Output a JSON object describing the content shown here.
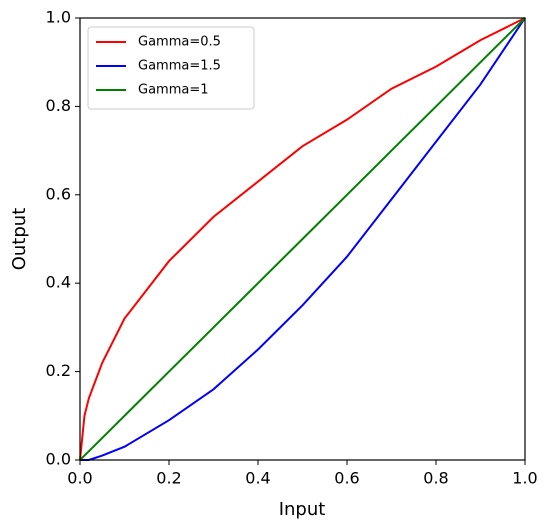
{
  "chart_data": {
    "type": "line",
    "xlabel": "Input",
    "ylabel": "Output",
    "x": [
      0,
      0.01,
      0.02,
      0.05,
      0.1,
      0.2,
      0.3,
      0.4,
      0.5,
      0.6,
      0.7,
      0.8,
      0.9,
      1.0
    ],
    "series": [
      {
        "name": "Gamma=0.5",
        "color": "#ff0000",
        "values": [
          0,
          0.1,
          0.14,
          0.22,
          0.32,
          0.45,
          0.55,
          0.63,
          0.71,
          0.77,
          0.84,
          0.89,
          0.95,
          1.0
        ]
      },
      {
        "name": "Gamma=1.5",
        "color": "#0000ff",
        "values": [
          0,
          0,
          0,
          0.01,
          0.03,
          0.09,
          0.16,
          0.25,
          0.35,
          0.46,
          0.59,
          0.72,
          0.85,
          1.0
        ]
      },
      {
        "name": "Gamma=1",
        "color": "#008000",
        "values": [
          0,
          0.01,
          0.02,
          0.05,
          0.1,
          0.2,
          0.3,
          0.4,
          0.5,
          0.6,
          0.7,
          0.8,
          0.9,
          1.0
        ]
      }
    ],
    "xlim": [
      0,
      1
    ],
    "ylim": [
      0,
      1
    ],
    "xticks": [
      {
        "value": 0,
        "label": "0.0"
      },
      0.2,
      0.4,
      0.6,
      0.8,
      {
        "value": 1,
        "label": "1.0"
      }
    ],
    "yticks": [
      {
        "value": 0,
        "label": "0.0"
      },
      0.2,
      0.4,
      0.6,
      0.8,
      {
        "value": 1,
        "label": "1.0"
      }
    ],
    "legend": "upper left"
  }
}
